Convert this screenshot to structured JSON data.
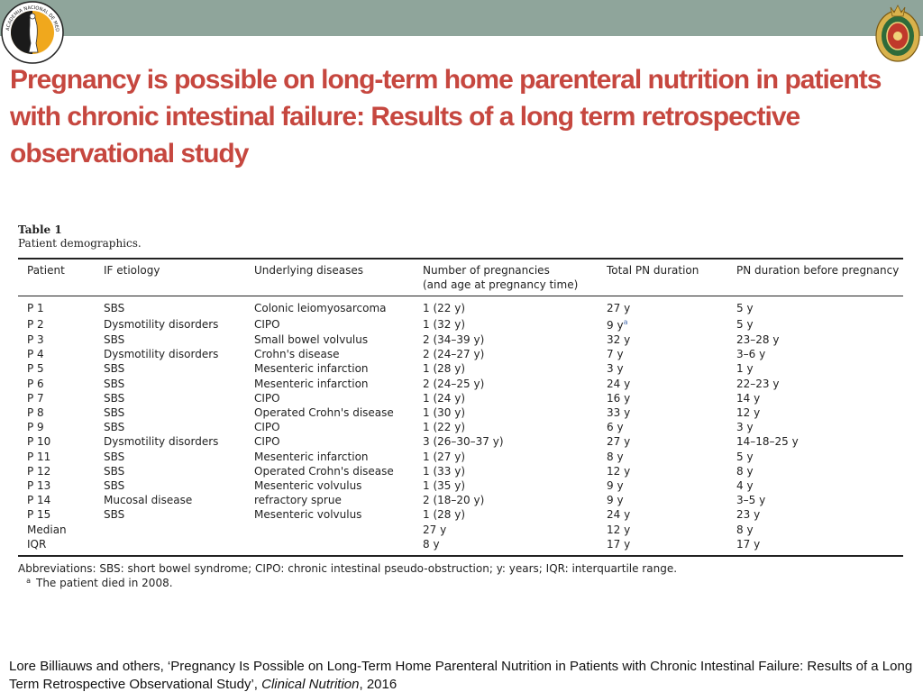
{
  "colors": {
    "band": "#8fa59b",
    "title": "#c6473f",
    "footnote_mark": "#4b6fb0"
  },
  "logos": {
    "left": {
      "name": "academia-nacional-de-medicina-seal",
      "text": "ACADEMIA NACIONAL DE MEDICINA · MEXICO"
    },
    "right": {
      "name": "academy-coat-of-arms"
    }
  },
  "title": "Pregnancy is possible on long-term home parenteral nutrition in patients with chronic intestinal failure: Results of a long term retrospective observational study",
  "table": {
    "label": "Table 1",
    "caption": "Patient demographics.",
    "headers": [
      "Patient",
      "IF etiology",
      "Underlying diseases",
      "Number of pregnancies",
      "Total PN duration",
      "PN duration before pregnancy"
    ],
    "header_subline": "(and age at pregnancy time)",
    "rows": [
      {
        "patient": "P 1",
        "etiology": "SBS",
        "disease": "Colonic leiomyosarcoma",
        "pregnancies": "1 (22 y)",
        "total_pn": "27 y",
        "pn_before": "5 y"
      },
      {
        "patient": "P 2",
        "etiology": "Dysmotility disorders",
        "disease": "CIPO",
        "pregnancies": "1 (32 y)",
        "total_pn": "9 y",
        "total_pn_mark": "a",
        "pn_before": "5 y"
      },
      {
        "patient": "P 3",
        "etiology": "SBS",
        "disease": "Small bowel volvulus",
        "pregnancies": "2 (34–39 y)",
        "total_pn": "32 y",
        "pn_before": "23–28 y"
      },
      {
        "patient": "P 4",
        "etiology": "Dysmotility disorders",
        "disease": "Crohn's disease",
        "pregnancies": "2 (24–27 y)",
        "total_pn": "7 y",
        "pn_before": "3–6 y"
      },
      {
        "patient": "P 5",
        "etiology": "SBS",
        "disease": "Mesenteric infarction",
        "pregnancies": "1 (28 y)",
        "total_pn": "3 y",
        "pn_before": "1 y"
      },
      {
        "patient": "P 6",
        "etiology": "SBS",
        "disease": "Mesenteric infarction",
        "pregnancies": "2 (24–25 y)",
        "total_pn": "24 y",
        "pn_before": "22–23 y"
      },
      {
        "patient": "P 7",
        "etiology": "SBS",
        "disease": "CIPO",
        "pregnancies": "1 (24 y)",
        "total_pn": "16 y",
        "pn_before": "14 y"
      },
      {
        "patient": "P 8",
        "etiology": "SBS",
        "disease": "Operated Crohn's disease",
        "pregnancies": "1 (30 y)",
        "total_pn": "33 y",
        "pn_before": "12 y"
      },
      {
        "patient": "P 9",
        "etiology": "SBS",
        "disease": "CIPO",
        "pregnancies": "1 (22 y)",
        "total_pn": "6 y",
        "pn_before": "3 y"
      },
      {
        "patient": "P 10",
        "etiology": "Dysmotility disorders",
        "disease": "CIPO",
        "pregnancies": "3 (26–30–37 y)",
        "total_pn": "27 y",
        "pn_before": "14–18–25 y"
      },
      {
        "patient": "P 11",
        "etiology": "SBS",
        "disease": "Mesenteric infarction",
        "pregnancies": "1 (27 y)",
        "total_pn": "8 y",
        "pn_before": "5 y"
      },
      {
        "patient": "P 12",
        "etiology": "SBS",
        "disease": "Operated Crohn's disease",
        "pregnancies": "1 (33 y)",
        "total_pn": "12 y",
        "pn_before": "8 y"
      },
      {
        "patient": "P 13",
        "etiology": "SBS",
        "disease": "Mesenteric volvulus",
        "pregnancies": "1 (35 y)",
        "total_pn": "9 y",
        "pn_before": "4 y"
      },
      {
        "patient": "P 14",
        "etiology": "Mucosal disease",
        "disease": "refractory sprue",
        "pregnancies": "2 (18–20 y)",
        "total_pn": "9 y",
        "pn_before": "3–5 y"
      },
      {
        "patient": "P 15",
        "etiology": "SBS",
        "disease": "Mesenteric volvulus",
        "pregnancies": "1 (28 y)",
        "total_pn": "24 y",
        "pn_before": "23 y"
      },
      {
        "patient": "Median",
        "etiology": "",
        "disease": "",
        "pregnancies": "27 y",
        "total_pn": "12 y",
        "pn_before": "8 y"
      },
      {
        "patient": "IQR",
        "etiology": "",
        "disease": "",
        "pregnancies": "8 y",
        "total_pn": "17 y",
        "pn_before": "17 y"
      }
    ],
    "abbreviations": "Abbreviations: SBS: short bowel syndrome; CIPO: chronic intestinal pseudo-obstruction; y: years; IQR: interquartile range.",
    "footnote_symbol": "a",
    "footnote_text": "The patient died in 2008."
  },
  "citation": {
    "before": "Lore Billiauws and others, ‘Pregnancy Is Possible on Long-Term Home Parenteral Nutrition in Patients with Chronic Intestinal Failure: Results of a Long Term Retrospective Observational Study’, ",
    "journal": "Clinical Nutrition",
    "after": ", 2016"
  }
}
